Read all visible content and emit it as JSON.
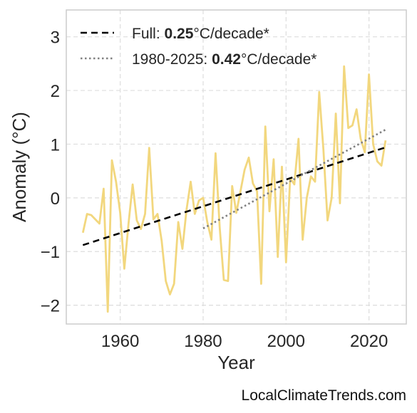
{
  "watermark": "LocalClimateTrends.com",
  "chart_data": {
    "type": "line",
    "xlabel": "Year",
    "ylabel": "Anomaly (°C)",
    "xlim": [
      1947,
      2029
    ],
    "ylim": [
      -2.35,
      3.5
    ],
    "x_ticks": [
      1960,
      1980,
      2000,
      2020
    ],
    "y_ticks": [
      -2,
      -1,
      0,
      1,
      2,
      3
    ],
    "y_tick_labels": [
      "−2",
      "−1",
      "0",
      "1",
      "2",
      "3"
    ],
    "grid": true,
    "legend_position": "top-left",
    "colors": {
      "anomaly": "#f2d77e",
      "full_trend": "#000000",
      "recent_trend": "#808080",
      "grid": "#dddddd",
      "frame": "#cccccc"
    },
    "series": [
      {
        "style": "solid",
        "x": [
          1951,
          1952,
          1953,
          1954,
          1955,
          1956,
          1957,
          1958,
          1959,
          1960,
          1961,
          1962,
          1963,
          1964,
          1965,
          1966,
          1967,
          1968,
          1969,
          1970,
          1971,
          1972,
          1973,
          1974,
          1975,
          1976,
          1977,
          1978,
          1979,
          1980,
          1981,
          1982,
          1983,
          1984,
          1985,
          1986,
          1987,
          1988,
          1989,
          1990,
          1991,
          1992,
          1993,
          1994,
          1995,
          1996,
          1997,
          1998,
          1999,
          2000,
          2001,
          2002,
          2003,
          2004,
          2005,
          2006,
          2007,
          2008,
          2009,
          2010,
          2011,
          2012,
          2013,
          2014,
          2015,
          2016,
          2017,
          2018,
          2019,
          2020,
          2021,
          2022,
          2023,
          2024
        ],
        "values": [
          -0.65,
          -0.3,
          -0.32,
          -0.4,
          -0.48,
          0.17,
          -2.12,
          0.7,
          0.3,
          -0.28,
          -1.32,
          -0.48,
          0.25,
          -0.42,
          -0.58,
          -0.3,
          0.93,
          -0.4,
          -0.3,
          -0.8,
          -1.55,
          -1.8,
          -1.6,
          -0.45,
          -0.95,
          -0.22,
          0.3,
          -0.3,
          -0.05,
          0.0,
          -0.45,
          -0.78,
          0.83,
          -0.55,
          -1.53,
          -1.55,
          0.22,
          -0.28,
          0.12,
          0.52,
          0.75,
          0.27,
          0.12,
          -1.6,
          1.33,
          -0.25,
          0.72,
          -1.1,
          0.58,
          -1.2,
          0.37,
          0.25,
          1.1,
          -0.78,
          0.0,
          0.4,
          0.3,
          1.97,
          0.9,
          -0.42,
          0.0,
          1.57,
          -0.1,
          2.45,
          1.3,
          1.35,
          1.65,
          1.1,
          0.85,
          2.3,
          1.0,
          0.68,
          0.6,
          1.07
        ]
      },
      {
        "name_prefix": "Full: ",
        "name_value": "0.25",
        "name_suffix": "°C/decade*",
        "style": "dashed",
        "x": [
          1951,
          2024
        ],
        "values": [
          -0.88,
          0.94
        ]
      },
      {
        "name_prefix": "1980-2025: ",
        "name_value": "0.42",
        "name_suffix": "°C/decade*",
        "style": "dotted",
        "x": [
          1980,
          2024
        ],
        "values": [
          -0.57,
          1.27
        ]
      }
    ]
  }
}
